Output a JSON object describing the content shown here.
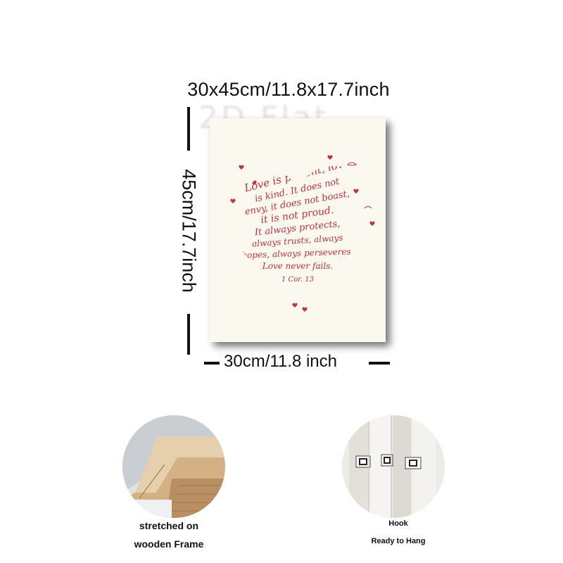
{
  "dimensions": {
    "top_label": "30x45cm/11.8x17.7inch",
    "side_label": "45cm/17.7inch",
    "bottom_label": "30cm/11.8 inch"
  },
  "watermark": "2D Flat",
  "artwork": {
    "lines": [
      "Love is patient, love",
      "is kind. It does not",
      "envy, it does not boast,",
      "it is not proud.",
      "It always protects,",
      "always trusts, always",
      "hopes, always perseveres.",
      "Love never fails.",
      "1 Cor. 13"
    ],
    "ink_color": "#c0323f",
    "paper_color": "#fbf8ef"
  },
  "features": {
    "frame": {
      "caption_line1": "stretched on",
      "caption_line2": "wooden Frame"
    },
    "hook": {
      "caption": "Hook",
      "subcaption": "Ready to Hang"
    }
  }
}
